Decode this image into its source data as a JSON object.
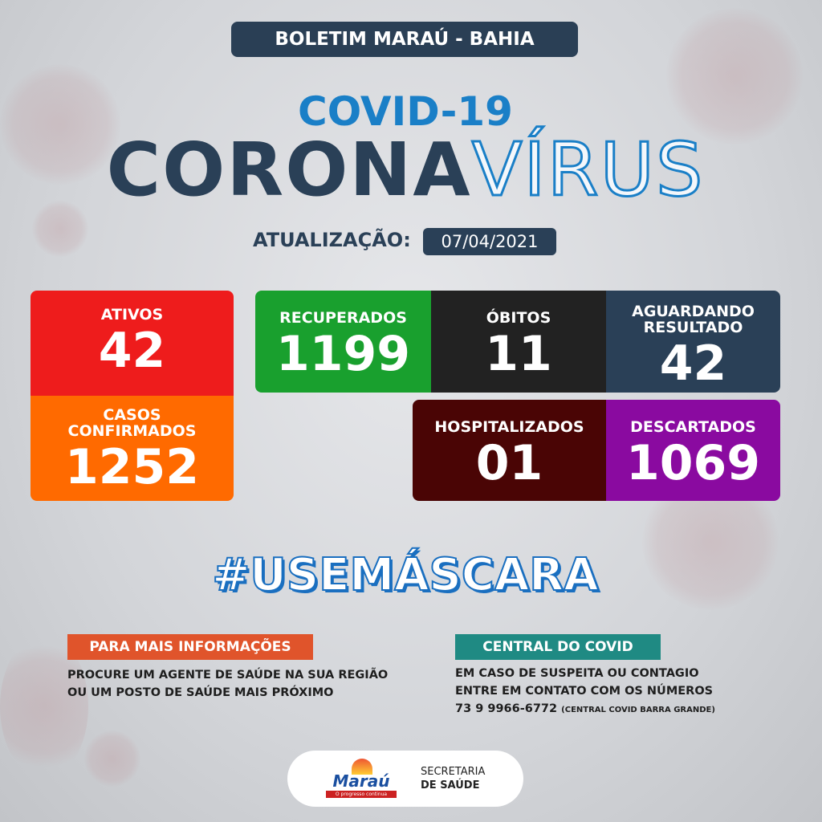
{
  "header": {
    "title": "BOLETIM MARAÚ - BAHIA",
    "subtitle": "COVID-19",
    "headline_a": "CORONA",
    "headline_b": "VÍRUS"
  },
  "update": {
    "label": "ATUALIZAÇÃO:",
    "date": "07/04/2021"
  },
  "stats": [
    {
      "label": "ATIVOS",
      "value": "42",
      "color": "#ee1c1c"
    },
    {
      "label": "CASOS CONFIRMADOS",
      "value": "1252",
      "color": "#ff6a00"
    },
    {
      "label": "RECUPERADOS",
      "value": "1199",
      "color": "#19a02e"
    },
    {
      "label": "ÓBITOS",
      "value": "11",
      "color": "#222222"
    },
    {
      "label": "AGUARDANDO RESULTADO",
      "value": "42",
      "color": "#2a4057"
    },
    {
      "label": "HOSPITALIZADOS",
      "value": "01",
      "color": "#4a0505"
    },
    {
      "label": "DESCARTADOS",
      "value": "1069",
      "color": "#8a0aa0"
    }
  ],
  "hashtag": "#USEMÁSCARA",
  "info": {
    "title": "PARA MAIS INFORMAÇÕES",
    "line1": "PROCURE UM AGENTE DE SAÚDE NA SUA REGIÃO",
    "line2": "OU UM POSTO DE SAÚDE MAIS PRÓXIMO"
  },
  "central": {
    "title": "CENTRAL DO COVID",
    "line1": "EM CASO DE SUSPEITA OU CONTAGIO",
    "line2": "ENTRE EM CONTATO COM OS NÚMEROS",
    "phone": "73 9 9966-6772",
    "phone_note": "(CENTRAL COVID BARRA GRANDE)"
  },
  "footer": {
    "logo_text": "Maraú",
    "logo_slogan": "O progresso continua",
    "dept1": "SECRETARIA",
    "dept2": "DE SAÚDE"
  }
}
